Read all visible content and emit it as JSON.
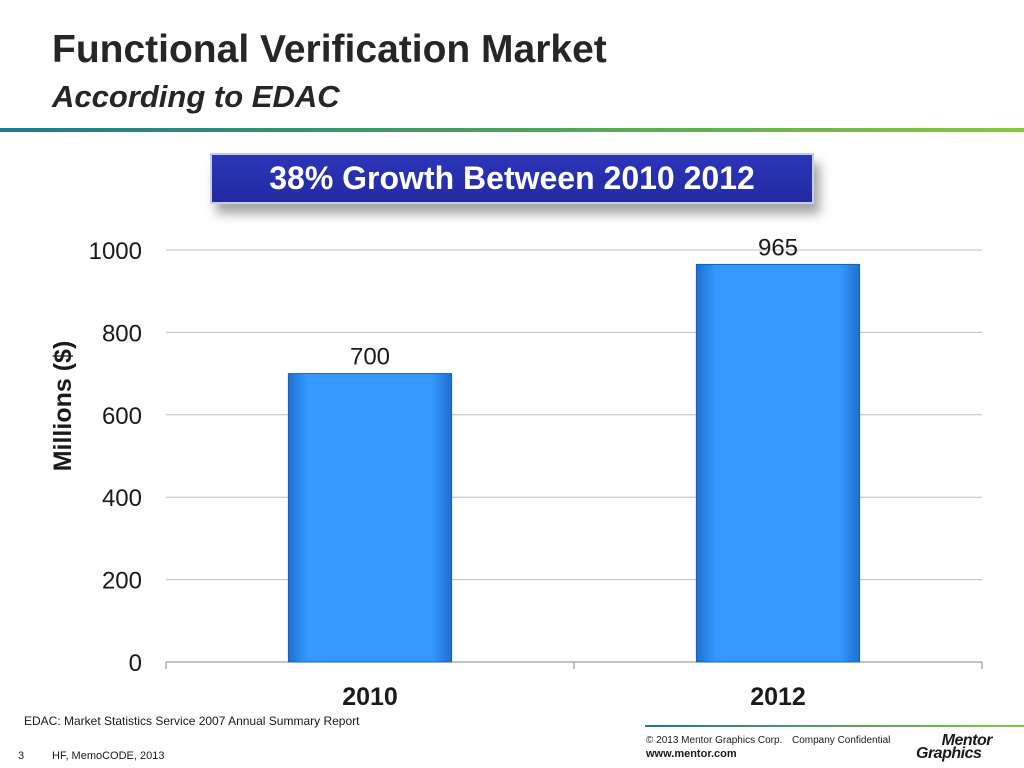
{
  "slide": {
    "title": "Functional Verification Market",
    "subtitle": "According to EDAC",
    "callout": "38% Growth Between 2010 2012"
  },
  "chart_data": {
    "type": "bar",
    "categories": [
      "2010",
      "2012"
    ],
    "values": [
      700,
      965
    ],
    "data_labels": [
      "700",
      "965"
    ],
    "ylabel": "Millions ($)",
    "xlabel": "",
    "ylim": [
      0,
      1000
    ],
    "yticks": [
      0,
      200,
      400,
      600,
      800,
      1000
    ],
    "grid": true,
    "legend": "none",
    "bar_color": "#3399ff"
  },
  "footer": {
    "source": "EDAC: Market Statistics Service 2007 Annual Summary Report",
    "copyright": "© 2013 Mentor Graphics Corp.",
    "confidential": "Company Confidential",
    "website": "www.mentor.com",
    "logo_line1": "Mentor",
    "logo_line2": "Graphics",
    "page_number": "3",
    "conference": "HF, MemoCODE, 2013"
  }
}
